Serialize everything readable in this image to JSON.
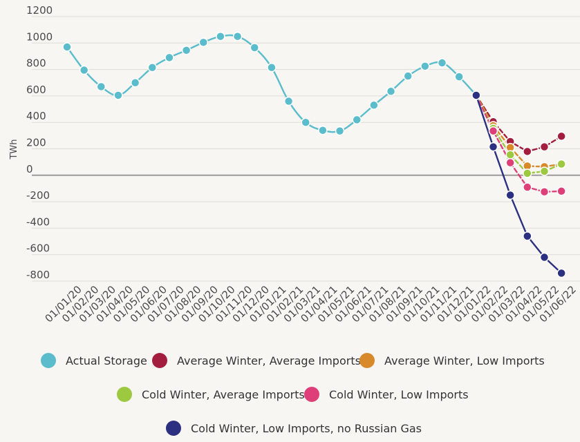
{
  "chart_data": {
    "type": "line",
    "title": "",
    "xlabel": "",
    "ylabel": "TWh",
    "ylim": [
      -800,
      1200
    ],
    "yticks": [
      1200,
      1000,
      800,
      600,
      400,
      200,
      0,
      -200,
      -400,
      -600,
      -800
    ],
    "grid": true,
    "legend_position": "bottom",
    "x": [
      "01/01/20",
      "01/02/20",
      "01/03/20",
      "01/04/20",
      "01/05/20",
      "01/06/20",
      "01/07/20",
      "01/08/20",
      "01/09/20",
      "01/10/20",
      "01/11/20",
      "01/12/20",
      "01/01/21",
      "01/02/21",
      "01/03/21",
      "01/04/21",
      "01/05/21",
      "01/06/21",
      "01/07/21",
      "01/08/21",
      "01/09/21",
      "01/10/21",
      "01/11/21",
      "01/12/21",
      "01/01/22",
      "01/02/22",
      "01/03/22",
      "01/04/22",
      "01/05/22",
      "01/06/22"
    ],
    "series": [
      {
        "name": "Actual Storage",
        "color": "#5bbccc",
        "dashed": false,
        "smooth": true,
        "values": [
          970,
          795,
          670,
          605,
          700,
          815,
          890,
          945,
          1005,
          1050,
          1050,
          965,
          815,
          560,
          400,
          340,
          335,
          420,
          530,
          635,
          750,
          825,
          850,
          745,
          605,
          null,
          null,
          null,
          null,
          null
        ]
      },
      {
        "name": "Average Winter, Average Imports",
        "color": "#a31d3f",
        "dashed": true,
        "values": [
          null,
          null,
          null,
          null,
          null,
          null,
          null,
          null,
          null,
          null,
          null,
          null,
          null,
          null,
          null,
          null,
          null,
          null,
          null,
          null,
          null,
          null,
          null,
          null,
          605,
          405,
          255,
          180,
          215,
          295
        ]
      },
      {
        "name": "Average Winter, Low Imports",
        "color": "#d88a2a",
        "dashed": true,
        "values": [
          null,
          null,
          null,
          null,
          null,
          null,
          null,
          null,
          null,
          null,
          null,
          null,
          null,
          null,
          null,
          null,
          null,
          null,
          null,
          null,
          null,
          null,
          null,
          null,
          605,
          375,
          210,
          70,
          65,
          85
        ]
      },
      {
        "name": "Cold Winter, Average Imports",
        "color": "#9dc940",
        "dashed": true,
        "values": [
          null,
          null,
          null,
          null,
          null,
          null,
          null,
          null,
          null,
          null,
          null,
          null,
          null,
          null,
          null,
          null,
          null,
          null,
          null,
          null,
          null,
          null,
          null,
          null,
          605,
          355,
          155,
          15,
          30,
          85
        ]
      },
      {
        "name": "Cold Winter, Low Imports",
        "color": "#df3f79",
        "dashed": true,
        "values": [
          null,
          null,
          null,
          null,
          null,
          null,
          null,
          null,
          null,
          null,
          null,
          null,
          null,
          null,
          null,
          null,
          null,
          null,
          null,
          null,
          null,
          null,
          null,
          null,
          605,
          335,
          95,
          -90,
          -125,
          -120
        ]
      },
      {
        "name": "Cold Winter, Low Imports, no Russian Gas",
        "color": "#2b3081",
        "dashed": false,
        "values": [
          null,
          null,
          null,
          null,
          null,
          null,
          null,
          null,
          null,
          null,
          null,
          null,
          null,
          null,
          null,
          null,
          null,
          null,
          null,
          null,
          null,
          null,
          null,
          null,
          605,
          215,
          -150,
          -460,
          -620,
          -740
        ]
      }
    ]
  },
  "legend": [
    {
      "label": "Actual Storage",
      "color": "#5bbccc",
      "row": 0
    },
    {
      "label": "Average Winter, Average Imports",
      "color": "#a31d3f",
      "row": 0
    },
    {
      "label": "Average Winter, Low Imports",
      "color": "#d88a2a",
      "row": 0
    },
    {
      "label": "Cold Winter, Average Imports",
      "color": "#9dc940",
      "row": 1
    },
    {
      "label": "Cold Winter, Low Imports",
      "color": "#df3f79",
      "row": 1
    },
    {
      "label": "Cold Winter, Low Imports, no Russian Gas",
      "color": "#2b3081",
      "row": 2
    }
  ]
}
